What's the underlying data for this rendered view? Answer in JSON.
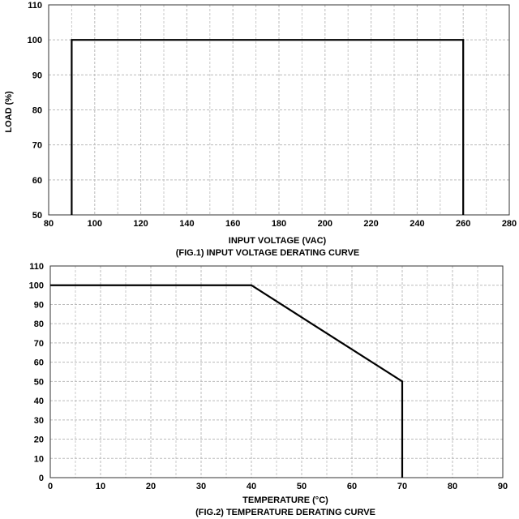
{
  "chart_data": [
    {
      "type": "line",
      "title": "(FIG.1) INPUT VOLTAGE DERATING CURVE",
      "xlabel": "INPUT VOLTAGE (VAC)",
      "ylabel": "LOAD (%)",
      "xlim": [
        80,
        280
      ],
      "ylim": [
        50,
        110
      ],
      "xticks": [
        80,
        100,
        120,
        140,
        160,
        180,
        200,
        220,
        240,
        260,
        280
      ],
      "yticks": [
        50,
        60,
        70,
        80,
        90,
        100,
        110
      ],
      "grid": "dashed",
      "series": [
        {
          "x": [
            90,
            90,
            260,
            260
          ],
          "y": [
            50,
            100,
            100,
            50
          ]
        }
      ]
    },
    {
      "type": "line",
      "title": "(FIG.2) TEMPERATURE DERATING CURVE",
      "xlabel": "TEMPERATURE (°C)",
      "ylabel": "",
      "xlim": [
        0,
        90
      ],
      "ylim": [
        0,
        110
      ],
      "xticks": [
        0,
        10,
        20,
        30,
        40,
        50,
        60,
        70,
        80,
        90
      ],
      "yticks": [
        0,
        10,
        20,
        30,
        40,
        50,
        60,
        70,
        80,
        90,
        100,
        110
      ],
      "grid": "dashed",
      "series": [
        {
          "x": [
            0,
            40,
            70,
            70
          ],
          "y": [
            100,
            100,
            50,
            0
          ]
        }
      ]
    }
  ]
}
